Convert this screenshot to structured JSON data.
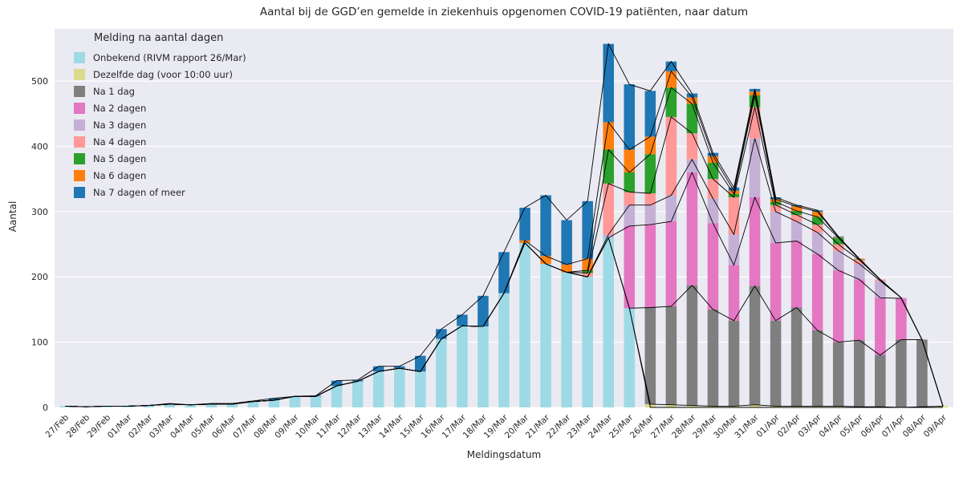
{
  "chart_data": {
    "type": "bar",
    "stacked": true,
    "title": "Aantal bij de GGD’en gemelde in ziekenhuis opgenomen COVID-19 patiënten, naar datum",
    "xlabel": "Meldingsdatum",
    "ylabel": "Aantal",
    "legend_title": "Melding na aantal dagen",
    "legend_position": "upper-left",
    "grid": true,
    "background": "#eaeaf2",
    "grid_color": "#ffffff",
    "outline_color": "#000000",
    "text_color": "#262626",
    "ylim": [
      0,
      580
    ],
    "yticks": [
      0,
      100,
      200,
      300,
      400,
      500
    ],
    "categories": [
      "27/Feb",
      "28/Feb",
      "29/Feb",
      "01/Mar",
      "02/Mar",
      "03/Mar",
      "04/Mar",
      "05/Mar",
      "06/Mar",
      "07/Mar",
      "08/Mar",
      "09/Mar",
      "10/Mar",
      "11/Mar",
      "12/Mar",
      "13/Mar",
      "14/Mar",
      "15/Mar",
      "16/Mar",
      "17/Mar",
      "18/Mar",
      "19/Mar",
      "20/Mar",
      "21/Mar",
      "22/Mar",
      "23/Mar",
      "24/Mar",
      "25/Mar",
      "26/Mar",
      "27/Mar",
      "28/Mar",
      "29/Mar",
      "30/Mar",
      "31/Mar",
      "01/Apr",
      "02/Apr",
      "03/Apr",
      "04/Apr",
      "05/Apr",
      "06/Apr",
      "07/Apr",
      "08/Apr",
      "09/Apr"
    ],
    "series": [
      {
        "name": "Onbekend (RIVM rapport 26/Mar)",
        "color": "#9edae5",
        "values": [
          2,
          1,
          2,
          2,
          3,
          5,
          4,
          5,
          5,
          9,
          11,
          17,
          17,
          33,
          40,
          55,
          60,
          55,
          105,
          125,
          124,
          175,
          252,
          220,
          207,
          200,
          260,
          152,
          0,
          0,
          0,
          0,
          0,
          0,
          0,
          0,
          0,
          0,
          0,
          0,
          0,
          0,
          0
        ]
      },
      {
        "name": "Dezelfde dag (voor 10:00 uur)",
        "color": "#dbdb8d",
        "values": [
          0,
          0,
          0,
          0,
          0,
          0,
          0,
          0,
          0,
          0,
          0,
          0,
          0,
          0,
          0,
          0,
          0,
          0,
          0,
          0,
          0,
          0,
          0,
          0,
          0,
          0,
          0,
          0,
          5,
          4,
          3,
          2,
          2,
          4,
          2,
          2,
          2,
          2,
          1,
          1,
          0,
          1,
          2
        ]
      },
      {
        "name": "Na 1 dag",
        "color": "#7f7f7f",
        "values": [
          0,
          0,
          0,
          0,
          0,
          0,
          0,
          0,
          0,
          0,
          0,
          0,
          0,
          0,
          0,
          0,
          0,
          0,
          0,
          0,
          0,
          0,
          0,
          0,
          0,
          0,
          0,
          0,
          148,
          151,
          184,
          148,
          131,
          182,
          131,
          151,
          116,
          98,
          102,
          79,
          104,
          103,
          0
        ]
      },
      {
        "name": "Na 2 dagen",
        "color": "#e377c2",
        "values": [
          0,
          0,
          0,
          0,
          0,
          0,
          0,
          0,
          0,
          0,
          0,
          0,
          0,
          0,
          0,
          0,
          0,
          0,
          0,
          0,
          0,
          0,
          0,
          0,
          0,
          0,
          0,
          126,
          127,
          130,
          173,
          132,
          85,
          136,
          119,
          102,
          117,
          110,
          93,
          88,
          63,
          0,
          0
        ]
      },
      {
        "name": "Na 3 dagen",
        "color": "#c5b0d5",
        "values": [
          0,
          0,
          0,
          0,
          0,
          0,
          0,
          0,
          0,
          0,
          0,
          0,
          0,
          0,
          0,
          0,
          0,
          0,
          0,
          0,
          0,
          0,
          0,
          0,
          0,
          0,
          5,
          32,
          30,
          40,
          20,
          38,
          47,
          90,
          48,
          30,
          33,
          30,
          24,
          26,
          1,
          0,
          0
        ]
      },
      {
        "name": "Na 4 dagen",
        "color": "#ff9896",
        "values": [
          0,
          0,
          0,
          0,
          0,
          0,
          0,
          0,
          0,
          0,
          0,
          0,
          0,
          0,
          0,
          0,
          0,
          0,
          0,
          0,
          0,
          0,
          0,
          0,
          0,
          6,
          78,
          20,
          18,
          120,
          40,
          30,
          57,
          48,
          10,
          10,
          12,
          10,
          6,
          2,
          0,
          0,
          0
        ]
      },
      {
        "name": "Na 5 dagen",
        "color": "#2ca02c",
        "values": [
          0,
          0,
          0,
          0,
          0,
          0,
          0,
          0,
          0,
          0,
          0,
          0,
          0,
          0,
          0,
          0,
          0,
          0,
          0,
          0,
          0,
          0,
          0,
          0,
          0,
          4,
          52,
          30,
          60,
          45,
          45,
          25,
          5,
          18,
          5,
          6,
          12,
          10,
          1,
          0,
          0,
          0,
          0
        ]
      },
      {
        "name": "Na 6 dagen",
        "color": "#ff7f0e",
        "values": [
          0,
          0,
          0,
          0,
          0,
          0,
          0,
          0,
          0,
          0,
          0,
          0,
          0,
          0,
          0,
          0,
          0,
          0,
          0,
          0,
          0,
          0,
          4,
          12,
          12,
          18,
          42,
          35,
          27,
          25,
          10,
          10,
          5,
          6,
          4,
          7,
          8,
          1,
          1,
          0,
          0,
          0,
          0
        ]
      },
      {
        "name": "Na 7 dagen of meer",
        "color": "#1f77b4",
        "values": [
          0,
          0,
          0,
          0,
          0,
          1,
          0,
          1,
          1,
          1,
          3,
          0,
          1,
          8,
          2,
          8,
          3,
          24,
          15,
          17,
          47,
          63,
          50,
          93,
          68,
          88,
          120,
          100,
          70,
          15,
          6,
          5,
          5,
          4,
          3,
          2,
          2,
          1,
          0,
          0,
          0,
          0,
          0
        ]
      }
    ]
  }
}
